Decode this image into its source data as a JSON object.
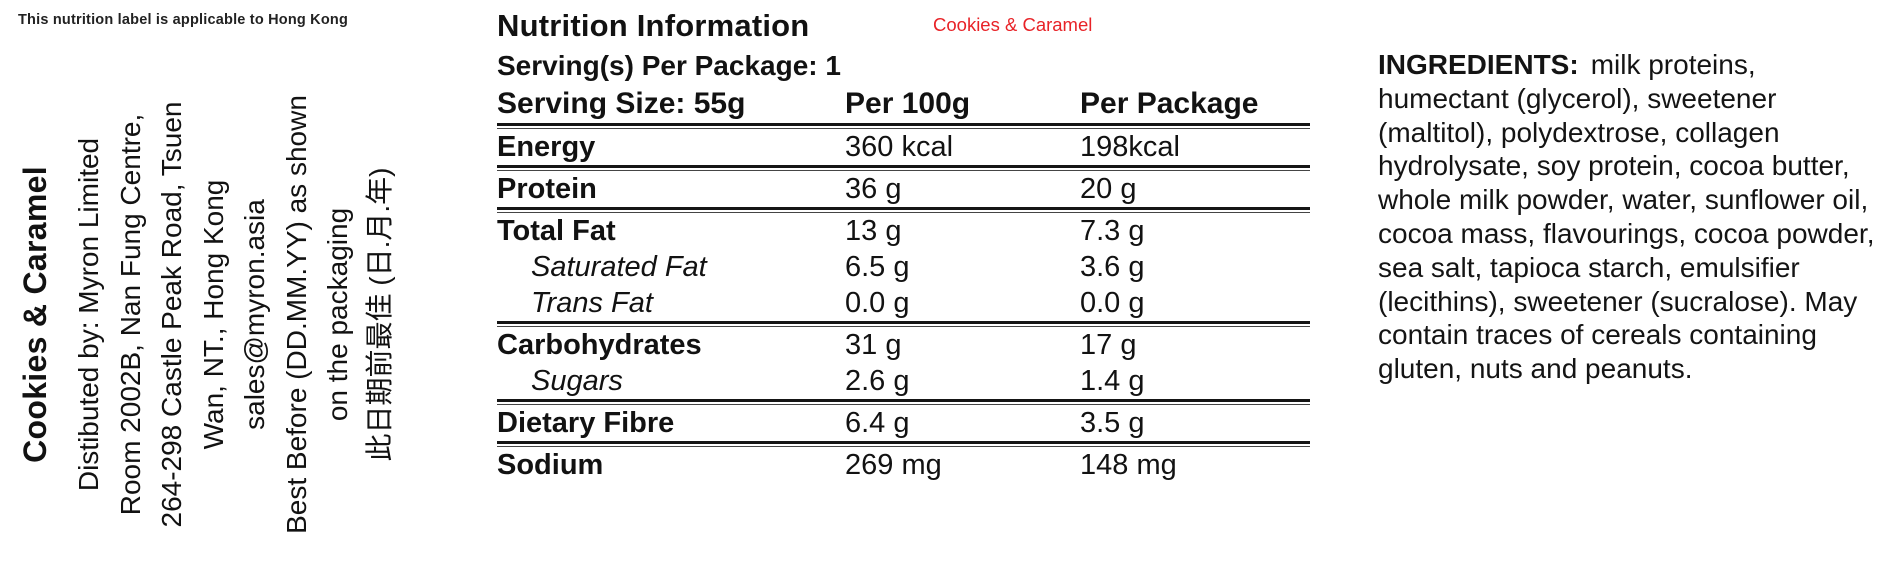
{
  "note": "This nutrition label is applicable to Hong Kong",
  "side_label": {
    "product_name": "Cookies & Caramel",
    "lines": [
      "Distibuted by: Myron Limited",
      "Room 2002B, Nan Fung Centre,",
      "264-298 Castle Peak Road, Tsuen",
      "Wan, NT., Hong Kong",
      "sales@myron.asia",
      "Best Before (DD.MM.YY) as shown",
      "on the packaging",
      "此日期前最佳 (日.月.年)"
    ]
  },
  "nutrition": {
    "title": "Nutrition Information",
    "variant": "Cookies & Caramel",
    "variant_color": "#e82227",
    "servings_line": "Serving(s) Per Package: 1",
    "columns": [
      "Serving Size: 55g",
      "Per 100g",
      "Per Package"
    ],
    "rows": [
      {
        "label": "Energy",
        "per_100g": "360 kcal",
        "per_package": "198kcal"
      },
      {
        "label": "Protein",
        "per_100g": "36 g",
        "per_package": "20 g"
      },
      {
        "label": "Total Fat",
        "per_100g": "13 g",
        "per_package": "7.3 g"
      },
      {
        "label": "Saturated Fat",
        "per_100g": "6.5 g",
        "per_package": "3.6 g"
      },
      {
        "label": "Trans Fat",
        "per_100g": "0.0 g",
        "per_package": "0.0 g"
      },
      {
        "label": "Carbohydrates",
        "per_100g": "31 g",
        "per_package": "17 g"
      },
      {
        "label": "Sugars",
        "per_100g": "2.6 g",
        "per_package": "1.4 g"
      },
      {
        "label": "Dietary Fibre",
        "per_100g": "6.4 g",
        "per_package": "3.5 g"
      },
      {
        "label": "Sodium",
        "per_100g": "269 mg",
        "per_package": "148 mg"
      }
    ]
  },
  "ingredients": {
    "heading": "INGREDIENTS:",
    "text": "milk proteins, humectant (glycerol), sweetener (maltitol), polydextrose, collagen hydrolysate, soy protein, cocoa butter, whole milk powder, water, sunflower oil, cocoa mass, flavourings, cocoa powder, sea salt, tapioca starch, emulsifier (lecithins), sweetener (sucralose). May contain traces of cereals containing gluten, nuts and peanuts."
  }
}
